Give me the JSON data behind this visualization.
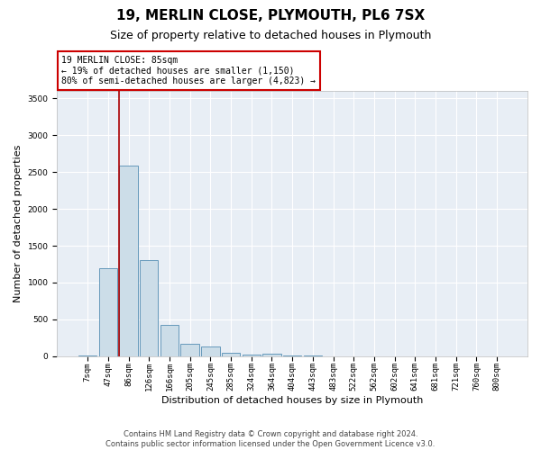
{
  "title": "19, MERLIN CLOSE, PLYMOUTH, PL6 7SX",
  "subtitle": "Size of property relative to detached houses in Plymouth",
  "xlabel": "Distribution of detached houses by size in Plymouth",
  "ylabel": "Number of detached properties",
  "bar_color": "#ccdde8",
  "bar_edge_color": "#6699bb",
  "marker_color": "#aa0000",
  "annotation_box_color": "#cc0000",
  "background_color": "#ffffff",
  "plot_bg_color": "#e8eef5",
  "grid_color": "#ffffff",
  "footer_text": "Contains HM Land Registry data © Crown copyright and database right 2024.\nContains public sector information licensed under the Open Government Licence v3.0.",
  "annotation_text": "19 MERLIN CLOSE: 85sqm\n← 19% of detached houses are smaller (1,150)\n80% of semi-detached houses are larger (4,823) →",
  "categories": [
    "7sqm",
    "47sqm",
    "86sqm",
    "126sqm",
    "166sqm",
    "205sqm",
    "245sqm",
    "285sqm",
    "324sqm",
    "364sqm",
    "404sqm",
    "443sqm",
    "483sqm",
    "522sqm",
    "562sqm",
    "602sqm",
    "641sqm",
    "681sqm",
    "721sqm",
    "760sqm",
    "800sqm"
  ],
  "values": [
    8,
    1200,
    2580,
    1300,
    430,
    170,
    130,
    50,
    25,
    30,
    8,
    8,
    3,
    3,
    0,
    3,
    0,
    0,
    0,
    0,
    0
  ],
  "ylim": [
    0,
    3600
  ],
  "yticks": [
    0,
    500,
    1000,
    1500,
    2000,
    2500,
    3000,
    3500
  ],
  "marker_bar_index": 2,
  "title_fontsize": 11,
  "subtitle_fontsize": 9,
  "tick_fontsize": 6.5,
  "ylabel_fontsize": 8,
  "xlabel_fontsize": 8,
  "footer_fontsize": 6,
  "annotation_fontsize": 7
}
